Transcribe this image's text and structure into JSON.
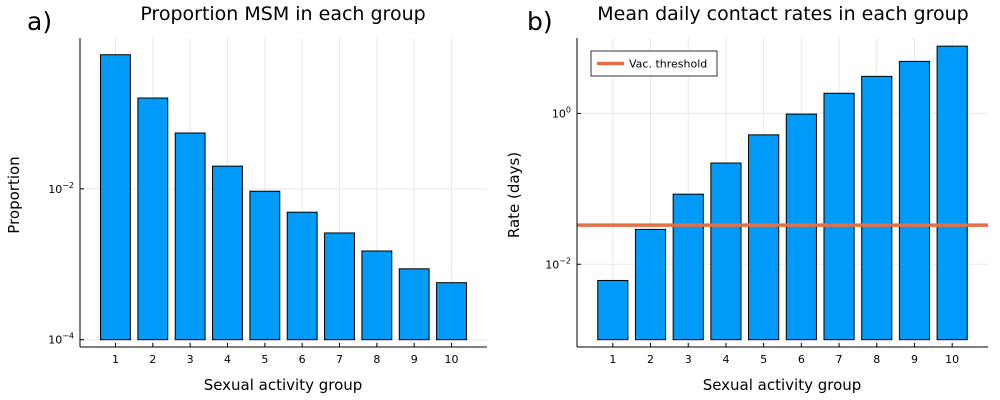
{
  "chart_data": [
    {
      "type": "bar",
      "panel_label": "a)",
      "title": "Proportion MSM in each group",
      "xlabel": "Sexual activity group",
      "ylabel": "Proportion",
      "yscale": "log10",
      "grid": true,
      "categories": [
        "1",
        "2",
        "3",
        "4",
        "5",
        "6",
        "7",
        "8",
        "9",
        "10"
      ],
      "values": [
        0.6,
        0.16,
        0.055,
        0.02,
        0.0093,
        0.0049,
        0.0026,
        0.0015,
        0.00087,
        0.00057
      ],
      "bar_base": 0.0001,
      "ylim": [
        8e-05,
        1.0
      ],
      "yticks": [
        {
          "value": 0.0001,
          "base": "10",
          "exp": "−4"
        },
        {
          "value": 0.01,
          "base": "10",
          "exp": "−2"
        }
      ]
    },
    {
      "type": "bar",
      "panel_label": "b)",
      "title": "Mean daily contact rates in each group",
      "xlabel": "Sexual activity group",
      "ylabel": "Rate (days)",
      "yscale": "log10",
      "grid": true,
      "categories": [
        "1",
        "2",
        "3",
        "4",
        "5",
        "6",
        "7",
        "8",
        "9",
        "10"
      ],
      "values": [
        0.0061,
        0.029,
        0.085,
        0.22,
        0.52,
        0.98,
        1.85,
        3.1,
        4.9,
        7.8
      ],
      "bar_base": 0.001,
      "ylim": [
        0.0008,
        10.0
      ],
      "yticks": [
        {
          "value": 0.01,
          "base": "10",
          "exp": "−2"
        },
        {
          "value": 1,
          "base": "10",
          "exp": "0"
        }
      ],
      "hline": {
        "name": "Vac. threshold",
        "value": 0.033,
        "color": "#e26f46"
      },
      "legend_position": "top-left"
    }
  ]
}
